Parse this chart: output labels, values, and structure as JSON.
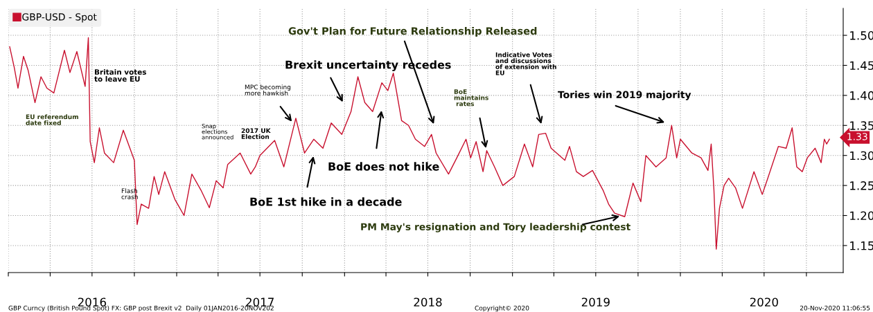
{
  "chart_data": {
    "type": "line",
    "x": [
      "2016-01-04",
      "2016-01-14",
      "2016-01-22",
      "2016-02-03",
      "2016-02-13",
      "2016-02-28",
      "2016-03-12",
      "2016-03-25",
      "2016-04-09",
      "2016-05-02",
      "2016-05-14",
      "2016-05-29",
      "2016-06-16",
      "2016-06-23",
      "2016-06-27",
      "2016-07-06",
      "2016-07-17",
      "2016-07-28",
      "2016-08-17",
      "2016-09-07",
      "2016-10-01",
      "2016-10-07",
      "2016-10-16",
      "2016-11-01",
      "2016-11-13",
      "2016-11-23",
      "2016-12-06",
      "2016-12-28",
      "2017-01-17",
      "2017-02-03",
      "2017-02-23",
      "2017-03-13",
      "2017-03-28",
      "2017-04-12",
      "2017-04-22",
      "2017-05-19",
      "2017-06-11",
      "2017-06-21",
      "2017-07-01",
      "2017-08-02",
      "2017-08-22",
      "2017-09-17",
      "2017-10-06",
      "2017-10-26",
      "2017-11-15",
      "2017-12-03",
      "2017-12-26",
      "2018-01-15",
      "2018-01-30",
      "2018-02-14",
      "2018-03-03",
      "2018-03-23",
      "2018-04-05",
      "2018-04-17",
      "2018-05-05",
      "2018-05-20",
      "2018-06-04",
      "2018-06-24",
      "2018-07-09",
      "2018-07-19",
      "2018-08-15",
      "2018-09-02",
      "2018-09-22",
      "2018-10-02",
      "2018-10-14",
      "2018-10-29",
      "2018-11-06",
      "2018-11-23",
      "2018-12-11",
      "2019-01-05",
      "2019-01-27",
      "2019-02-14",
      "2019-02-27",
      "2019-03-14",
      "2019-03-26",
      "2019-04-25",
      "2019-05-05",
      "2019-05-20",
      "2019-06-04",
      "2019-06-24",
      "2019-07-17",
      "2019-07-29",
      "2019-08-11",
      "2019-09-02",
      "2019-09-20",
      "2019-10-07",
      "2019-10-18",
      "2019-11-09",
      "2019-12-01",
      "2019-12-13",
      "2019-12-24",
      "2020-01-01",
      "2020-01-26",
      "2020-02-15",
      "2020-03-01",
      "2020-03-08",
      "2020-03-14",
      "2020-03-19",
      "2020-03-26",
      "2020-04-05",
      "2020-04-15",
      "2020-04-30",
      "2020-05-15",
      "2020-06-09",
      "2020-06-27",
      "2020-07-09",
      "2020-08-01",
      "2020-08-18",
      "2020-08-31",
      "2020-09-10",
      "2020-09-22",
      "2020-10-03",
      "2020-10-20",
      "2020-11-02",
      "2020-11-09",
      "2020-11-14",
      "2020-11-20"
    ],
    "series": [
      {
        "name": "GBP-USD - Spot",
        "color": "#c8102e",
        "values": [
          1.481,
          1.446,
          1.412,
          1.465,
          1.442,
          1.388,
          1.431,
          1.412,
          1.404,
          1.475,
          1.438,
          1.473,
          1.415,
          1.496,
          1.323,
          1.288,
          1.346,
          1.304,
          1.288,
          1.342,
          1.292,
          1.185,
          1.219,
          1.212,
          1.265,
          1.235,
          1.273,
          1.227,
          1.2,
          1.269,
          1.242,
          1.213,
          1.258,
          1.246,
          1.285,
          1.304,
          1.269,
          1.281,
          1.3,
          1.325,
          1.281,
          1.362,
          1.304,
          1.327,
          1.312,
          1.354,
          1.335,
          1.373,
          1.431,
          1.388,
          1.373,
          1.421,
          1.408,
          1.437,
          1.358,
          1.35,
          1.327,
          1.315,
          1.335,
          1.304,
          1.269,
          1.296,
          1.327,
          1.296,
          1.323,
          1.273,
          1.308,
          1.281,
          1.25,
          1.265,
          1.319,
          1.281,
          1.335,
          1.337,
          1.312,
          1.292,
          1.315,
          1.273,
          1.265,
          1.275,
          1.242,
          1.219,
          1.204,
          1.198,
          1.254,
          1.223,
          1.3,
          1.281,
          1.296,
          1.35,
          1.296,
          1.327,
          1.304,
          1.296,
          1.275,
          1.319,
          1.242,
          1.144,
          1.212,
          1.25,
          1.262,
          1.246,
          1.212,
          1.273,
          1.235,
          1.262,
          1.315,
          1.312,
          1.346,
          1.281,
          1.273,
          1.296,
          1.312,
          1.288,
          1.327,
          1.319,
          1.327
        ]
      }
    ],
    "xlim": [
      "2016-01-01",
      "2020-12-20"
    ],
    "xticks": [
      {
        "value": "2016-01-01",
        "label": null
      },
      {
        "value": "2016-04-01",
        "label": null
      },
      {
        "value": "2016-07-01",
        "label": "2016"
      },
      {
        "value": "2016-10-01",
        "label": null
      },
      {
        "value": "2017-01-01",
        "label": null
      },
      {
        "value": "2017-04-01",
        "label": null
      },
      {
        "value": "2017-07-01",
        "label": "2017"
      },
      {
        "value": "2017-10-01",
        "label": null
      },
      {
        "value": "2018-01-01",
        "label": null
      },
      {
        "value": "2018-04-01",
        "label": null
      },
      {
        "value": "2018-07-01",
        "label": "2018"
      },
      {
        "value": "2018-10-01",
        "label": null
      },
      {
        "value": "2019-01-01",
        "label": null
      },
      {
        "value": "2019-04-01",
        "label": null
      },
      {
        "value": "2019-07-01",
        "label": "2019"
      },
      {
        "value": "2019-10-01",
        "label": null
      },
      {
        "value": "2020-01-01",
        "label": null
      },
      {
        "value": "2020-04-01",
        "label": null
      },
      {
        "value": "2020-07-01",
        "label": "2020"
      },
      {
        "value": "2020-10-01",
        "label": null
      }
    ],
    "ylim": [
      1.105,
      1.545
    ],
    "yticks": [
      {
        "value": 1.15,
        "label": "1.15"
      },
      {
        "value": 1.2,
        "label": "1.20"
      },
      {
        "value": 1.25,
        "label": "1.25"
      },
      {
        "value": 1.3,
        "label": "1.30"
      },
      {
        "value": 1.35,
        "label": "1.35"
      },
      {
        "value": 1.4,
        "label": "1.40"
      },
      {
        "value": 1.45,
        "label": "1.45"
      },
      {
        "value": 1.5,
        "label": "1.50"
      }
    ],
    "grid": true,
    "legend": "top left",
    "marker": "none",
    "line_style": "solid",
    "annotations": [
      "EU referendum\ndate fixed",
      "Britain votes\nto leave EU",
      "Flash\ncrash",
      "Snap\nelections\nannounced",
      "2017 UK\nElection",
      "MPC becoming\nmore hawkish",
      "BoE 1st hike in a decade",
      "Brexit uncertainty recedes",
      "BoE does not hike",
      "Gov't Plan for Future Relationship Released",
      "BoE\nmaintains\n rates",
      "Indicative Votes\nand discussions\nof extension with\nEU",
      "Tories win 2019 majority",
      "PM May's resignation and Tory leadership contest",
      "GBP Curncy (British Pound Spot) FX: GBP post Brexit v2  Daily 01JAN2016-20NOV202",
      "Copyright© 2020",
      "20-Nov-2020 11:06:55",
      {
        "text": "1.33",
        "x": "2020-11-20",
        "y": 1.33
      }
    ]
  }
}
